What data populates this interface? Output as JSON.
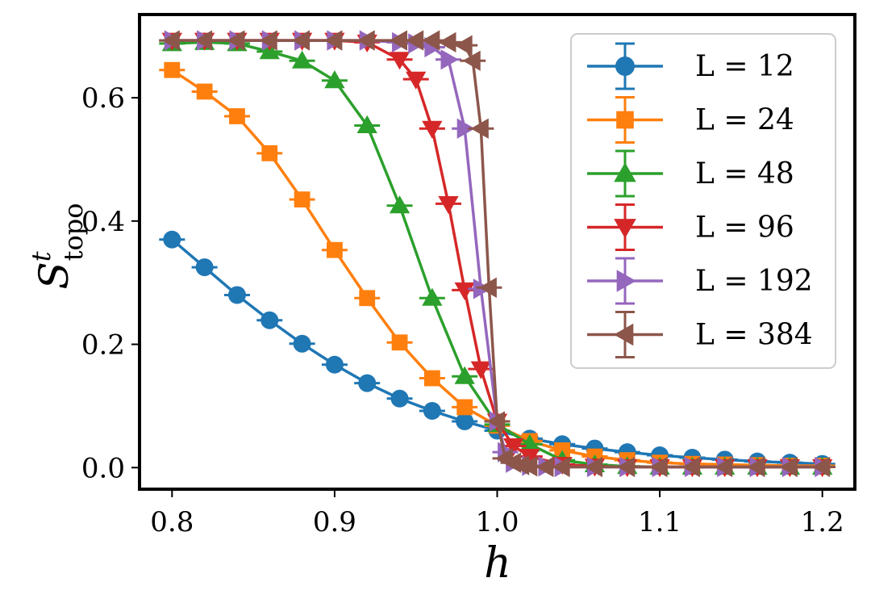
{
  "chart_data": {
    "type": "line",
    "xlabel": "h",
    "ylabel_main": "S",
    "ylabel_sup": "t",
    "ylabel_sub": "topo",
    "xlim": [
      0.78,
      1.22
    ],
    "ylim": [
      -0.035,
      0.735
    ],
    "xticks": [
      0.8,
      0.9,
      1.0,
      1.1,
      1.2
    ],
    "xtick_labels": [
      "0.8",
      "0.9",
      "1.0",
      "1.1",
      "1.2"
    ],
    "yticks": [
      0.0,
      0.2,
      0.4,
      0.6
    ],
    "ytick_labels": [
      "0.0",
      "0.2",
      "0.4",
      "0.6"
    ],
    "legend_position": "top-right",
    "series": [
      {
        "name": "L = 12",
        "color": "#1f77b4",
        "marker": "circle",
        "x": [
          0.8,
          0.82,
          0.84,
          0.86,
          0.88,
          0.9,
          0.92,
          0.94,
          0.96,
          0.98,
          1.0,
          1.02,
          1.04,
          1.06,
          1.08,
          1.1,
          1.12,
          1.14,
          1.16,
          1.18,
          1.2
        ],
        "y": [
          0.37,
          0.325,
          0.28,
          0.239,
          0.201,
          0.167,
          0.137,
          0.112,
          0.092,
          0.075,
          0.06,
          0.047,
          0.038,
          0.031,
          0.025,
          0.02,
          0.016,
          0.013,
          0.01,
          0.008,
          0.006
        ]
      },
      {
        "name": "L = 24",
        "color": "#ff7f0e",
        "marker": "square",
        "x": [
          0.8,
          0.82,
          0.84,
          0.86,
          0.88,
          0.9,
          0.92,
          0.94,
          0.96,
          0.98,
          1.0,
          1.02,
          1.04,
          1.06,
          1.08,
          1.1,
          1.12,
          1.14,
          1.16,
          1.18,
          1.2
        ],
        "y": [
          0.645,
          0.61,
          0.57,
          0.51,
          0.435,
          0.353,
          0.275,
          0.203,
          0.145,
          0.098,
          0.068,
          0.043,
          0.028,
          0.018,
          0.012,
          0.008,
          0.006,
          0.005,
          0.004,
          0.003,
          0.003
        ]
      },
      {
        "name": "L = 48",
        "color": "#2ca02c",
        "marker": "triangle-up",
        "x": [
          0.8,
          0.82,
          0.84,
          0.86,
          0.88,
          0.9,
          0.92,
          0.94,
          0.96,
          0.98,
          1.0,
          1.02,
          1.04,
          1.06,
          1.08,
          1.1,
          1.12,
          1.14,
          1.16,
          1.18,
          1.2
        ],
        "y": [
          0.688,
          0.69,
          0.688,
          0.675,
          0.66,
          0.628,
          0.555,
          0.425,
          0.275,
          0.148,
          0.07,
          0.038,
          0.012,
          0.005,
          0.002,
          0.001,
          0.001,
          0.001,
          0.001,
          0.001,
          0.001
        ]
      },
      {
        "name": "L = 96",
        "color": "#d62728",
        "marker": "triangle-down",
        "x": [
          0.8,
          0.82,
          0.84,
          0.86,
          0.88,
          0.9,
          0.92,
          0.94,
          0.95,
          0.96,
          0.97,
          0.98,
          0.99,
          1.0,
          1.01,
          1.02,
          1.04,
          1.06,
          1.08,
          1.1,
          1.12,
          1.14,
          1.16,
          1.18,
          1.2
        ],
        "y": [
          0.693,
          0.693,
          0.693,
          0.693,
          0.693,
          0.693,
          0.69,
          0.662,
          0.63,
          0.55,
          0.428,
          0.288,
          0.16,
          0.075,
          0.035,
          0.018,
          0.005,
          0.002,
          0.001,
          0.001,
          0.001,
          0.001,
          0.001,
          0.001,
          0.001
        ]
      },
      {
        "name": "L = 192",
        "color": "#9467bd",
        "marker": "triangle-right",
        "x": [
          0.8,
          0.82,
          0.84,
          0.86,
          0.88,
          0.9,
          0.92,
          0.94,
          0.95,
          0.96,
          0.97,
          0.98,
          0.99,
          1.0,
          1.005,
          1.01,
          1.02,
          1.03,
          1.04,
          1.06,
          1.08,
          1.1,
          1.12,
          1.14,
          1.16,
          1.18,
          1.2
        ],
        "y": [
          0.693,
          0.693,
          0.693,
          0.693,
          0.693,
          0.693,
          0.693,
          0.69,
          0.688,
          0.682,
          0.662,
          0.55,
          0.29,
          0.075,
          0.025,
          0.008,
          0.003,
          0.002,
          0.001,
          0.001,
          0.001,
          0.001,
          0.001,
          0.001,
          0.001,
          0.001,
          0.001
        ]
      },
      {
        "name": "L = 384",
        "color": "#8c564b",
        "marker": "triangle-left",
        "x": [
          0.8,
          0.82,
          0.84,
          0.86,
          0.88,
          0.9,
          0.92,
          0.94,
          0.95,
          0.96,
          0.97,
          0.98,
          0.985,
          0.99,
          0.995,
          1.0,
          1.005,
          1.01,
          1.015,
          1.02,
          1.03,
          1.04,
          1.06,
          1.08,
          1.1,
          1.12,
          1.14,
          1.16,
          1.18,
          1.2
        ],
        "y": [
          0.693,
          0.693,
          0.693,
          0.693,
          0.693,
          0.693,
          0.693,
          0.693,
          0.693,
          0.693,
          0.69,
          0.685,
          0.66,
          0.55,
          0.292,
          0.075,
          0.015,
          0.008,
          0.004,
          0.002,
          0.001,
          0.001,
          0.001,
          0.001,
          0.001,
          0.001,
          0.001,
          0.001,
          0.001,
          0.001
        ]
      }
    ]
  }
}
